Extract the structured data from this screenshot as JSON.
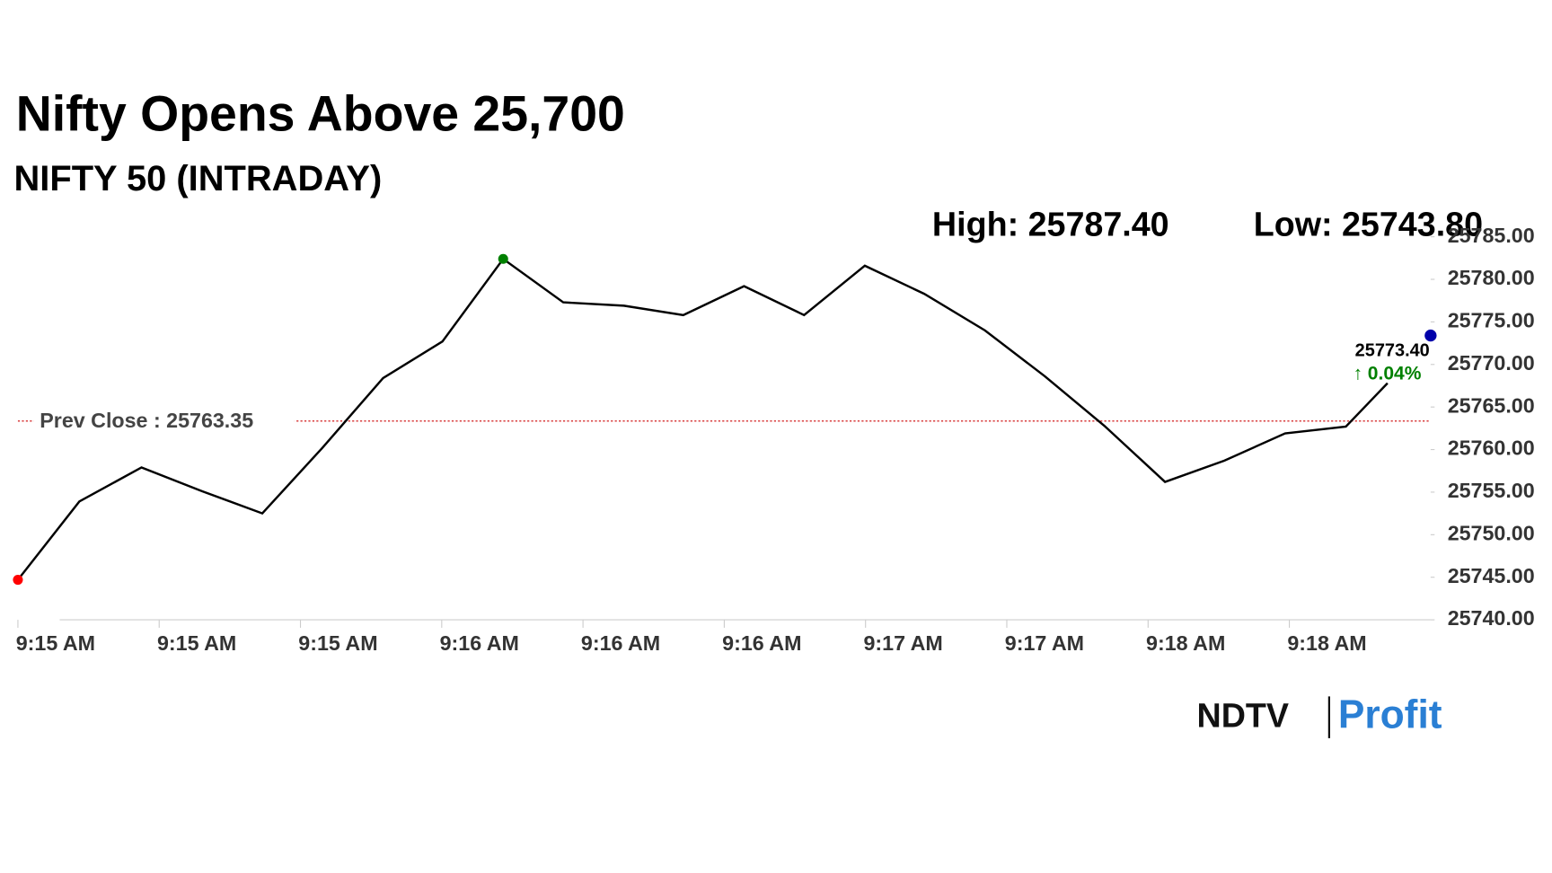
{
  "chart_data": {
    "type": "line",
    "title": "Nifty Opens Above 25,700",
    "subtitle": "NIFTY 50 (INTRADAY)",
    "high_label": "High: 25787.40",
    "low_label": "Low: 25743.80",
    "x": [
      0,
      8.7,
      17.5,
      26.1,
      34.6,
      43.1,
      51.7,
      60.1,
      68.7,
      77.2,
      85.8,
      94.2,
      102.8,
      111.3,
      119.9,
      128.3,
      136.9,
      145.4,
      153.8,
      162.4,
      170.8,
      179.4,
      188,
      193.9
    ],
    "series": [
      {
        "name": "NIFTY 50",
        "color": "#000000",
        "values": [
          25744.7,
          25753.9,
          25757.9,
          25755.1,
          25752.5,
          25760.2,
          25768.4,
          25772.7,
          25782.4,
          25777.3,
          25776.9,
          25775.8,
          25779.2,
          25775.8,
          25781.6,
          25778.3,
          25774.0,
          25768.6,
          25762.8,
          25756.2,
          25758.7,
          25761.9,
          25762.7,
          25767.8
        ]
      }
    ],
    "low_marker_color": "#ff0000",
    "high_marker_color": "#008000",
    "last_point": {
      "x": 200,
      "value": 25773.4,
      "label": "25773.40",
      "change_label": "↑ 0.04%",
      "color": "#0000aa",
      "change_color": "#008000"
    },
    "prev_close": {
      "value": 25763.35,
      "label": "Prev Close : 25763.35",
      "color": "#cc0000"
    },
    "xlim": [
      0,
      200
    ],
    "xticks": [
      {
        "value": 0,
        "label": "9:15 AM"
      },
      {
        "value": 20,
        "label": "9:15 AM"
      },
      {
        "value": 40,
        "label": "9:15 AM"
      },
      {
        "value": 60,
        "label": "9:16 AM"
      },
      {
        "value": 80,
        "label": "9:16 AM"
      },
      {
        "value": 100,
        "label": "9:16 AM"
      },
      {
        "value": 120,
        "label": "9:17 AM"
      },
      {
        "value": 140,
        "label": "9:17 AM"
      },
      {
        "value": 160,
        "label": "9:18 AM"
      },
      {
        "value": 180,
        "label": "9:18 AM"
      }
    ],
    "ylim": [
      25740,
      25785
    ],
    "yticks": [
      {
        "value": 25740,
        "label": "25740.00"
      },
      {
        "value": 25745,
        "label": "25745.00"
      },
      {
        "value": 25750,
        "label": "25750.00"
      },
      {
        "value": 25755,
        "label": "25755.00"
      },
      {
        "value": 25760,
        "label": "25760.00"
      },
      {
        "value": 25765,
        "label": "25765.00"
      },
      {
        "value": 25770,
        "label": "25770.00"
      },
      {
        "value": 25775,
        "label": "25775.00"
      },
      {
        "value": 25780,
        "label": "25780.00"
      },
      {
        "value": 25785,
        "label": "25785.00"
      }
    ]
  },
  "logo": {
    "brand": "NDTV",
    "product": "Profit"
  }
}
